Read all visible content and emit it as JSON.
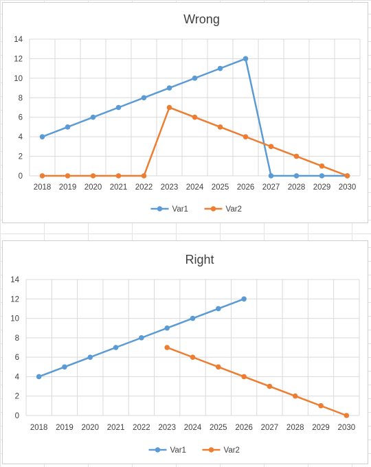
{
  "colors": {
    "var1": "#5b9bd5",
    "var2": "#ed7d31",
    "grid": "#d9d9d9",
    "text": "#404040"
  },
  "chart_data": [
    {
      "type": "line",
      "title": "Wrong",
      "categories": [
        "2018",
        "2019",
        "2020",
        "2021",
        "2022",
        "2023",
        "2024",
        "2025",
        "2026",
        "2027",
        "2028",
        "2029",
        "2030"
      ],
      "series": [
        {
          "name": "Var1",
          "values": [
            4,
            5,
            6,
            7,
            8,
            9,
            10,
            11,
            12,
            0,
            0,
            0,
            0
          ]
        },
        {
          "name": "Var2",
          "values": [
            0,
            0,
            0,
            0,
            0,
            7,
            6,
            5,
            4,
            3,
            2,
            1,
            0
          ]
        }
      ],
      "ylim": [
        0,
        14
      ],
      "yticks": [
        "0",
        "2",
        "4",
        "6",
        "8",
        "10",
        "12",
        "14"
      ],
      "grid": true,
      "legend": "bottom"
    },
    {
      "type": "line",
      "title": "Right",
      "categories": [
        "2018",
        "2019",
        "2020",
        "2021",
        "2022",
        "2023",
        "2024",
        "2025",
        "2026",
        "2027",
        "2028",
        "2029",
        "2030"
      ],
      "series": [
        {
          "name": "Var1",
          "values": [
            4,
            5,
            6,
            7,
            8,
            9,
            10,
            11,
            12,
            null,
            null,
            null,
            null
          ]
        },
        {
          "name": "Var2",
          "values": [
            null,
            null,
            null,
            null,
            null,
            7,
            6,
            5,
            4,
            3,
            2,
            1,
            0
          ]
        }
      ],
      "ylim": [
        0,
        14
      ],
      "yticks": [
        "0",
        "2",
        "4",
        "6",
        "8",
        "10",
        "12",
        "14"
      ],
      "grid": true,
      "legend": "bottom"
    }
  ]
}
